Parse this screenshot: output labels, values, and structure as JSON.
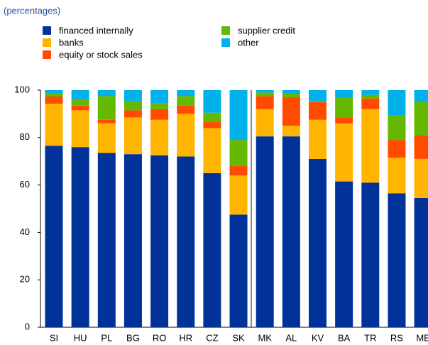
{
  "chart_data": {
    "type": "stacked_bar",
    "subtitle": "(percentages)",
    "categories": [
      "SI",
      "HU",
      "PL",
      "BG",
      "RO",
      "HR",
      "CZ",
      "SK",
      "MK",
      "AL",
      "KV",
      "BA",
      "TR",
      "RS",
      "ME"
    ],
    "series": [
      {
        "name": "financed internally",
        "color": "#003299",
        "values": [
          76.5,
          76,
          73.5,
          73,
          72.5,
          72,
          65,
          47.5,
          80.5,
          80.5,
          71,
          61.5,
          61,
          56.5,
          54.5
        ]
      },
      {
        "name": "banks",
        "color": "#ffb400",
        "values": [
          17.8,
          15.5,
          12.5,
          15.5,
          15,
          18,
          19,
          16.5,
          11.5,
          4.5,
          16.5,
          24.5,
          31,
          15,
          16.5
        ]
      },
      {
        "name": "equity or stock sales",
        "color": "#ff4b00",
        "values": [
          3,
          2,
          1.5,
          3,
          4.5,
          3.5,
          2.5,
          4,
          5.5,
          12,
          7.5,
          2.5,
          4.5,
          7.5,
          10
        ]
      },
      {
        "name": "supplier credit",
        "color": "#65b800",
        "values": [
          1.5,
          2.5,
          10,
          4,
          2.5,
          4,
          4,
          11,
          1.5,
          1.5,
          0.5,
          8.5,
          1.5,
          10.5,
          14
        ]
      },
      {
        "name": "other",
        "color": "#00b1ea",
        "values": [
          1.2,
          4,
          2.5,
          4.5,
          5.5,
          2.5,
          9.5,
          21,
          1,
          1.5,
          4.5,
          3,
          2,
          10.5,
          5
        ]
      }
    ],
    "ylim": [
      0,
      100
    ],
    "yticks": [
      0,
      20,
      40,
      60,
      80,
      100
    ]
  }
}
